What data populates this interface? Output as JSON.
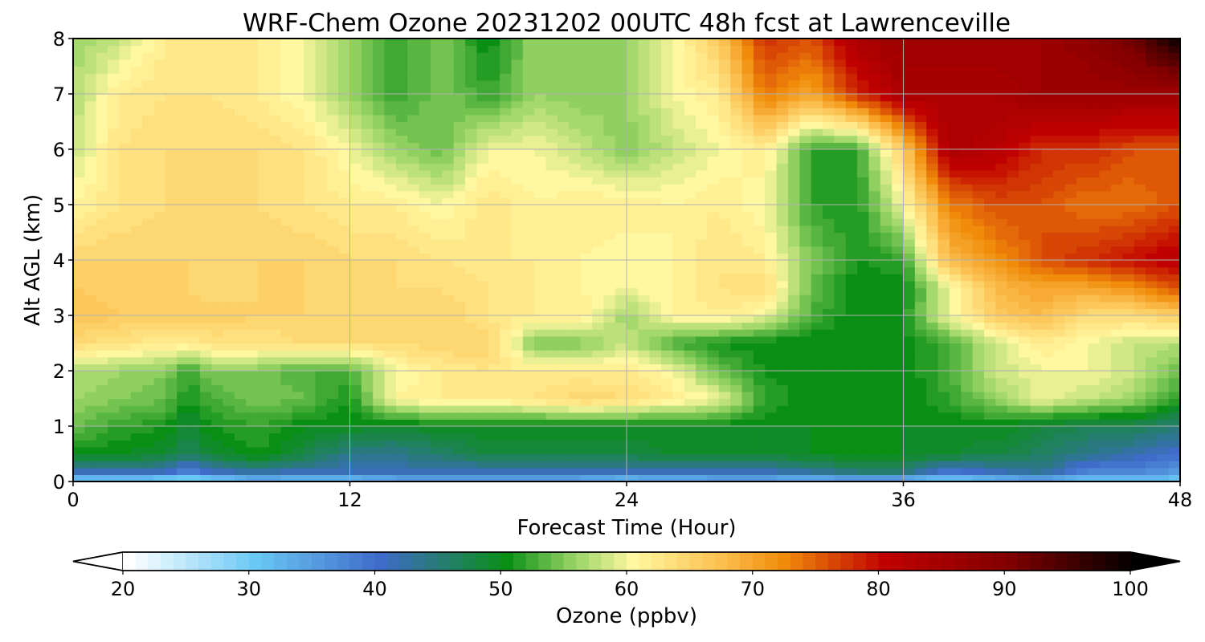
{
  "chart_data": {
    "type": "heatmap",
    "title": "WRF-Chem Ozone  20231202 00UTC 48h fcst at Lawrenceville",
    "xlabel": "Forecast Time (Hour)",
    "ylabel": "Alt AGL (km)",
    "xlim": [
      0,
      48
    ],
    "ylim": [
      0,
      8
    ],
    "xticks": [
      0,
      12,
      24,
      36,
      48
    ],
    "yticks": [
      0,
      1,
      2,
      3,
      4,
      5,
      6,
      7,
      8
    ],
    "grid": true,
    "colorbar": {
      "label": "Ozone  (ppbv)",
      "range": [
        20,
        100
      ],
      "ticks": [
        20,
        30,
        40,
        50,
        60,
        70,
        80,
        90,
        100
      ],
      "extend": "both",
      "orientation": "horizontal",
      "stops": [
        {
          "v": 20,
          "color": "#ffffff"
        },
        {
          "v": 30,
          "color": "#6ac8f5"
        },
        {
          "v": 40,
          "color": "#3f6bc9"
        },
        {
          "v": 50,
          "color": "#0a8f15"
        },
        {
          "v": 55,
          "color": "#8fd060"
        },
        {
          "v": 60,
          "color": "#fff8a0"
        },
        {
          "v": 67,
          "color": "#fcc050"
        },
        {
          "v": 72,
          "color": "#f08c0a"
        },
        {
          "v": 80,
          "color": "#c00000"
        },
        {
          "v": 90,
          "color": "#800000"
        },
        {
          "v": 100,
          "color": "#000000"
        }
      ]
    },
    "x_hours": [
      0,
      2,
      4,
      5,
      6,
      8,
      10,
      12,
      14,
      16,
      18,
      20,
      22,
      24,
      26,
      28,
      30,
      32,
      34,
      36,
      38,
      40,
      42,
      44,
      46,
      48
    ],
    "y_km": [
      0,
      0.2,
      0.5,
      1,
      1.5,
      2,
      2.5,
      3,
      3.5,
      4,
      5,
      6,
      7,
      8
    ],
    "values": [
      [
        28,
        28,
        27,
        26,
        27,
        30,
        30,
        30,
        32,
        33,
        33,
        32,
        32,
        30,
        31,
        32,
        32,
        30,
        31,
        30,
        28,
        30,
        32,
        30,
        30,
        30
      ],
      [
        42,
        43,
        42,
        38,
        42,
        44,
        42,
        42,
        42,
        42,
        42,
        42,
        42,
        42,
        42,
        42,
        42,
        44,
        46,
        46,
        40,
        42,
        44,
        38,
        38,
        36
      ],
      [
        50,
        50,
        49,
        46,
        49,
        51,
        48,
        44,
        44,
        46,
        48,
        48,
        48,
        48,
        49,
        49,
        49,
        50,
        50,
        50,
        49,
        48,
        46,
        44,
        42,
        40
      ],
      [
        54,
        52,
        51,
        48,
        51,
        52,
        50,
        50,
        49,
        50,
        50,
        50,
        50,
        50,
        50,
        50,
        50,
        50,
        50,
        50,
        50,
        50,
        48,
        47,
        47,
        45
      ],
      [
        56,
        55,
        54,
        51,
        53,
        55,
        54,
        51,
        61,
        62,
        62,
        63,
        65,
        64,
        62,
        60,
        52,
        50,
        50,
        50,
        52,
        56,
        60,
        58,
        56,
        52
      ],
      [
        57,
        56,
        55,
        52,
        55,
        55,
        53,
        53,
        60,
        62,
        63,
        62,
        62,
        62,
        60,
        54,
        51,
        50,
        50,
        50,
        53,
        58,
        60,
        60,
        58,
        54
      ],
      [
        64,
        63,
        62,
        62,
        63,
        63,
        64,
        64,
        64,
        65,
        65,
        55,
        55,
        58,
        53,
        51,
        50,
        50,
        50,
        50,
        53,
        58,
        62,
        60,
        58,
        57
      ],
      [
        67,
        66,
        66,
        66,
        66,
        65,
        65,
        65,
        65,
        65,
        63,
        62,
        62,
        56,
        61,
        62,
        60,
        53,
        50,
        51,
        60,
        66,
        68,
        64,
        64,
        66
      ],
      [
        66,
        65,
        65,
        65,
        64,
        65,
        65,
        64,
        64,
        64,
        63,
        62,
        61,
        60,
        61,
        63,
        64,
        54,
        50,
        50,
        60,
        68,
        70,
        70,
        72,
        76
      ],
      [
        65,
        65,
        65,
        65,
        65,
        65,
        65,
        64,
        64,
        63,
        62,
        62,
        61,
        60,
        61,
        63,
        62,
        55,
        51,
        52,
        68,
        72,
        76,
        78,
        80,
        82
      ],
      [
        61,
        63,
        64,
        64,
        64,
        64,
        63,
        62,
        62,
        60,
        63,
        61,
        62,
        62,
        61,
        62,
        60,
        52,
        51,
        60,
        73,
        76,
        76,
        74,
        74,
        76
      ],
      [
        58,
        63,
        64,
        64,
        64,
        64,
        63,
        60,
        56,
        54,
        60,
        60,
        58,
        55,
        58,
        60,
        62,
        52,
        52,
        66,
        84,
        82,
        78,
        78,
        76,
        76
      ],
      [
        57,
        62,
        63,
        63,
        63,
        62,
        60,
        56,
        52,
        55,
        52,
        56,
        55,
        56,
        60,
        62,
        74,
        70,
        78,
        84,
        84,
        84,
        86,
        86,
        86,
        86
      ],
      [
        56,
        58,
        62,
        62,
        63,
        62,
        60,
        56,
        52,
        55,
        50,
        56,
        55,
        56,
        60,
        66,
        78,
        76,
        84,
        86,
        86,
        86,
        86,
        88,
        92,
        100
      ]
    ]
  }
}
